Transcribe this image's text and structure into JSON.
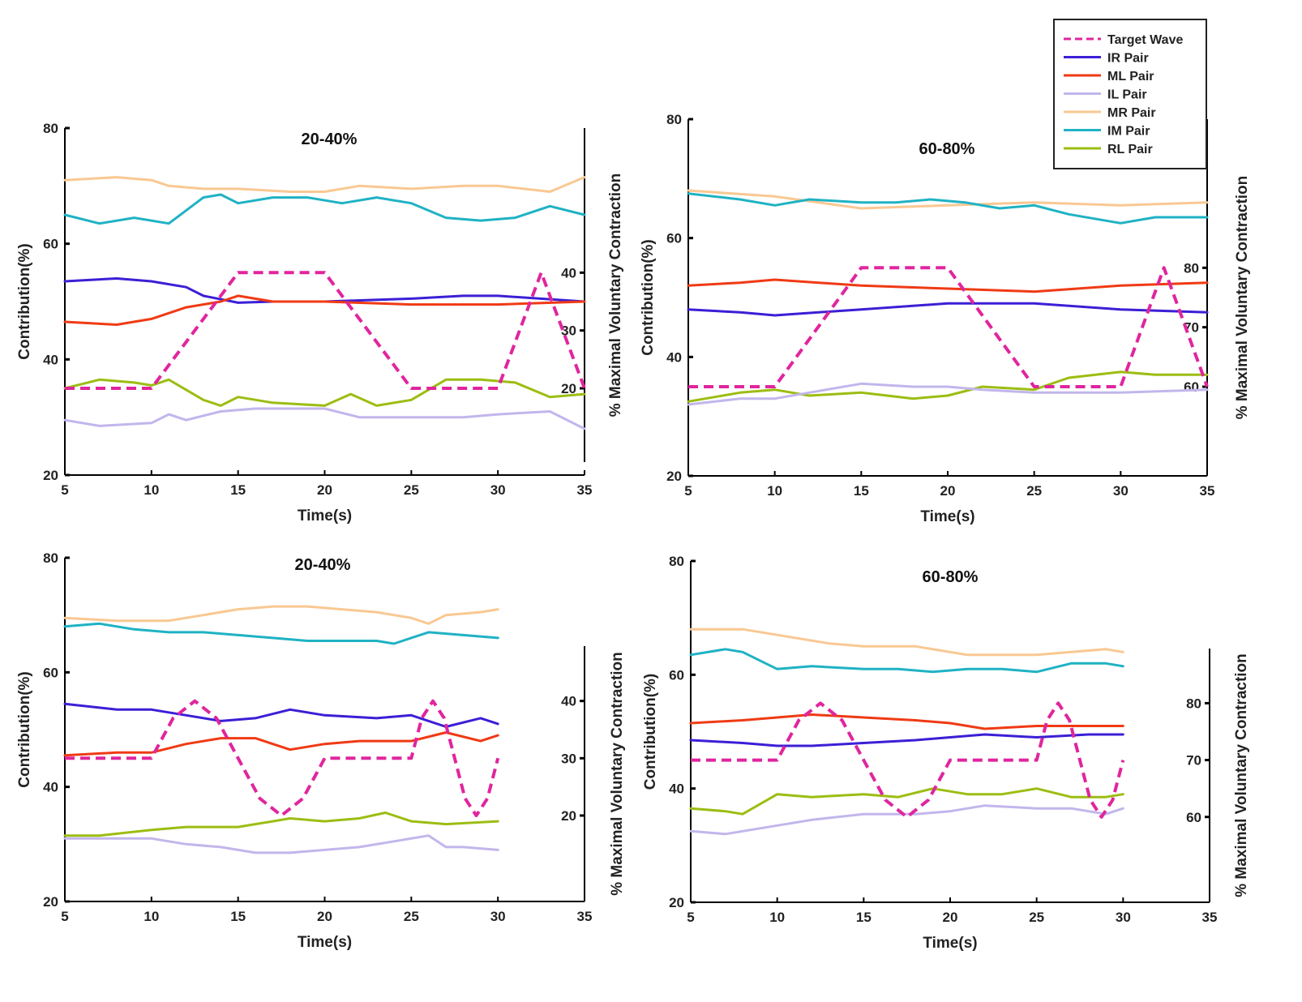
{
  "legend": {
    "entries": [
      {
        "label": "Target Wave",
        "color": "#e0259e",
        "dashed": true
      },
      {
        "label": "IR Pair",
        "color": "#3b1fd6",
        "dashed": false
      },
      {
        "label": "ML Pair",
        "color": "#f03a14",
        "dashed": false
      },
      {
        "label": "IL Pair",
        "color": "#c2b6ec",
        "dashed": false
      },
      {
        "label": "MR Pair",
        "color": "#f9c892",
        "dashed": false
      },
      {
        "label": "IM Pair",
        "color": "#1fb2c4",
        "dashed": false
      },
      {
        "label": "RL Pair",
        "color": "#9cbd12",
        "dashed": false
      }
    ]
  },
  "chart_data": [
    {
      "type": "line",
      "title": "20-40%",
      "xlabel": "Time(s)",
      "ylabel": "Contribution(%)",
      "y2label": "% Maximal Voluntary Contraction",
      "xlim": [
        5,
        35
      ],
      "xticks": [
        5,
        10,
        15,
        20,
        25,
        30,
        35
      ],
      "ylim": [
        20,
        80
      ],
      "yticks": [
        20,
        40,
        60,
        80
      ],
      "y2ticks": [
        20,
        30,
        40
      ],
      "y2_at_left": [
        35,
        45,
        55
      ],
      "target_wave": {
        "name": "Target Wave",
        "x": [
          5,
          10,
          15,
          20,
          25,
          30,
          32.5,
          35
        ],
        "y": [
          20,
          20,
          40,
          40,
          20,
          20,
          40,
          20
        ]
      },
      "series": [
        {
          "name": "MR Pair",
          "x": [
            5,
            8,
            10,
            11,
            13,
            15,
            18,
            20,
            22,
            25,
            28,
            30,
            33,
            35
          ],
          "y": [
            71,
            71.5,
            71,
            70,
            69.5,
            69.5,
            69,
            69,
            70,
            69.5,
            70,
            70,
            69,
            71.5
          ]
        },
        {
          "name": "IM Pair",
          "x": [
            5,
            7,
            9,
            11,
            13,
            14,
            15,
            17,
            19,
            21,
            23,
            25,
            27,
            29,
            31,
            33,
            35
          ],
          "y": [
            65,
            63.5,
            64.5,
            63.5,
            68,
            68.5,
            67,
            68,
            68,
            67,
            68,
            67,
            64.5,
            64,
            64.5,
            66.5,
            65
          ]
        },
        {
          "name": "IR Pair",
          "x": [
            5,
            8,
            10,
            12,
            13,
            15,
            17,
            20,
            25,
            28,
            30,
            35
          ],
          "y": [
            53.5,
            54,
            53.5,
            52.5,
            51,
            49.8,
            50,
            50,
            50.5,
            51,
            51,
            50
          ]
        },
        {
          "name": "ML Pair",
          "x": [
            5,
            8,
            10,
            12,
            14,
            15,
            17,
            20,
            25,
            28,
            30,
            35
          ],
          "y": [
            46.5,
            46,
            47,
            49,
            50,
            51,
            50,
            50,
            49.5,
            49.5,
            49.5,
            50
          ]
        },
        {
          "name": "RL Pair",
          "x": [
            5,
            7,
            9,
            10,
            11,
            13,
            14,
            15,
            17,
            20,
            21.5,
            23,
            25,
            27,
            29,
            31,
            33,
            35
          ],
          "y": [
            35,
            36.5,
            36,
            35.5,
            36.5,
            33,
            32,
            33.5,
            32.5,
            32,
            34,
            32,
            33,
            36.5,
            36.5,
            36,
            33.5,
            34
          ]
        },
        {
          "name": "IL Pair",
          "x": [
            5,
            7,
            10,
            11,
            12,
            14,
            16,
            20,
            22,
            25,
            28,
            30,
            33,
            35
          ],
          "y": [
            29.5,
            28.5,
            29,
            30.5,
            29.5,
            31,
            31.5,
            31.5,
            30,
            30,
            30,
            30.5,
            31,
            28
          ]
        }
      ]
    },
    {
      "type": "line",
      "title": "60-80%",
      "xlabel": "Time(s)",
      "ylabel": "Contribution(%)",
      "y2label": "% Maximal Voluntary Contraction",
      "xlim": [
        5,
        35
      ],
      "xticks": [
        5,
        10,
        15,
        20,
        25,
        30,
        35
      ],
      "ylim": [
        20,
        80
      ],
      "yticks": [
        20,
        40,
        60,
        80
      ],
      "y2ticks": [
        60,
        70,
        80
      ],
      "y2_at_left": [
        35,
        45,
        55
      ],
      "target_wave": {
        "name": "Target Wave",
        "x": [
          5,
          10,
          15,
          20,
          25,
          30,
          32.5,
          35
        ],
        "y": [
          60,
          60,
          80,
          80,
          60,
          60,
          80,
          60
        ]
      },
      "series": [
        {
          "name": "MR Pair",
          "x": [
            5,
            10,
            15,
            20,
            25,
            30,
            35
          ],
          "y": [
            68,
            67,
            65,
            65.5,
            66,
            65.5,
            66
          ]
        },
        {
          "name": "IM Pair",
          "x": [
            5,
            8,
            10,
            12,
            15,
            17,
            19,
            21,
            23,
            25,
            27,
            30,
            32,
            35
          ],
          "y": [
            67.5,
            66.5,
            65.5,
            66.5,
            66,
            66,
            66.5,
            66,
            65,
            65.5,
            64,
            62.5,
            63.5,
            63.5
          ]
        },
        {
          "name": "ML Pair",
          "x": [
            5,
            8,
            10,
            15,
            20,
            25,
            30,
            35
          ],
          "y": [
            52,
            52.5,
            53,
            52,
            51.5,
            51,
            52,
            52.5
          ]
        },
        {
          "name": "IR Pair",
          "x": [
            5,
            8,
            10,
            15,
            20,
            25,
            30,
            35
          ],
          "y": [
            48,
            47.5,
            47,
            48,
            49,
            49,
            48,
            47.5
          ]
        },
        {
          "name": "RL Pair",
          "x": [
            5,
            8,
            10,
            12,
            15,
            18,
            20,
            22,
            25,
            27,
            30,
            32,
            35
          ],
          "y": [
            32.5,
            34,
            34.5,
            33.5,
            34,
            33,
            33.5,
            35,
            34.5,
            36.5,
            37.5,
            37,
            37
          ]
        },
        {
          "name": "IL Pair",
          "x": [
            5,
            8,
            10,
            12,
            15,
            18,
            20,
            22,
            25,
            30,
            35
          ],
          "y": [
            32,
            33,
            33,
            34,
            35.5,
            35,
            35,
            34.5,
            34,
            34,
            34.5
          ]
        }
      ]
    },
    {
      "type": "line",
      "title": "20-40%",
      "xlabel": "Time(s)",
      "ylabel": "Contribution(%)",
      "y2label": "% Maximal Voluntary Contraction",
      "xlim": [
        5,
        35
      ],
      "xticks": [
        5,
        10,
        15,
        20,
        25,
        30,
        35
      ],
      "ylim": [
        20,
        80
      ],
      "yticks": [
        20,
        40,
        60,
        80
      ],
      "y2ticks": [
        20,
        30,
        40
      ],
      "y2_at_left": [
        35,
        45,
        55
      ],
      "target_wave": {
        "name": "Target Wave",
        "x": [
          5,
          10,
          11.25,
          12.5,
          13.75,
          15,
          16.25,
          17.5,
          18.75,
          20,
          25,
          25.6,
          26.25,
          26.9,
          27.5,
          28.1,
          28.75,
          29.4,
          30
        ],
        "y": [
          30,
          30,
          37,
          40,
          37,
          30,
          23,
          20,
          23,
          30,
          30,
          37,
          40,
          37,
          30,
          23,
          20,
          23,
          30
        ]
      },
      "series": [
        {
          "name": "MR Pair",
          "x": [
            5,
            8,
            11,
            13,
            15,
            17,
            19,
            21,
            23,
            25,
            26,
            27,
            29,
            30
          ],
          "y": [
            69.5,
            69,
            69,
            70,
            71,
            71.5,
            71.5,
            71,
            70.5,
            69.5,
            68.5,
            70,
            70.5,
            71
          ]
        },
        {
          "name": "IM Pair",
          "x": [
            5,
            7,
            9,
            11,
            13,
            15,
            17,
            19,
            21,
            23,
            24,
            25,
            26,
            28,
            30
          ],
          "y": [
            68,
            68.5,
            67.5,
            67,
            67,
            66.5,
            66,
            65.5,
            65.5,
            65.5,
            65,
            66,
            67,
            66.5,
            66
          ]
        },
        {
          "name": "IR Pair",
          "x": [
            5,
            8,
            10,
            12,
            14,
            16,
            18,
            20,
            23,
            25,
            27,
            29,
            30
          ],
          "y": [
            54.5,
            53.5,
            53.5,
            52.5,
            51.5,
            52,
            53.5,
            52.5,
            52,
            52.5,
            50.5,
            52,
            51
          ]
        },
        {
          "name": "ML Pair",
          "x": [
            5,
            8,
            10,
            12,
            14,
            16,
            17,
            18,
            20,
            22,
            25,
            27,
            29,
            30
          ],
          "y": [
            45.5,
            46,
            46,
            47.5,
            48.5,
            48.5,
            47.5,
            46.5,
            47.5,
            48,
            48,
            49.5,
            48,
            49
          ]
        },
        {
          "name": "RL Pair",
          "x": [
            5,
            7,
            10,
            12,
            15,
            17,
            18,
            20,
            22,
            23.5,
            25,
            27,
            30
          ],
          "y": [
            31.5,
            31.5,
            32.5,
            33,
            33,
            34,
            34.5,
            34,
            34.5,
            35.5,
            34,
            33.5,
            34
          ]
        },
        {
          "name": "IL Pair",
          "x": [
            5,
            8,
            10,
            12,
            14,
            16,
            18,
            20,
            22,
            24,
            26,
            27,
            28,
            30
          ],
          "y": [
            31,
            31,
            31,
            30,
            29.5,
            28.5,
            28.5,
            29,
            29.5,
            30.5,
            31.5,
            29.5,
            29.5,
            29
          ]
        }
      ]
    },
    {
      "type": "line",
      "title": "60-80%",
      "xlabel": "Time(s)",
      "ylabel": "Contribution(%)",
      "y2label": "% Maximal Voluntary Contraction",
      "xlim": [
        5,
        35
      ],
      "xticks": [
        5,
        10,
        15,
        20,
        25,
        30,
        35
      ],
      "ylim": [
        20,
        80
      ],
      "yticks": [
        20,
        40,
        60,
        80
      ],
      "y2ticks": [
        60,
        70,
        80
      ],
      "y2_at_left": [
        35,
        45,
        55
      ],
      "target_wave": {
        "name": "Target Wave",
        "x": [
          5,
          10,
          11.25,
          12.5,
          13.75,
          15,
          16.25,
          17.5,
          18.75,
          20,
          25,
          25.6,
          26.25,
          26.9,
          27.5,
          28.1,
          28.75,
          29.4,
          30
        ],
        "y": [
          70,
          70,
          77,
          80,
          77,
          70,
          63,
          60,
          63,
          70,
          70,
          77,
          80,
          77,
          70,
          63,
          60,
          63,
          70
        ]
      },
      "series": [
        {
          "name": "MR Pair",
          "x": [
            5,
            8,
            10,
            13,
            15,
            18,
            20,
            21,
            23,
            25,
            27,
            29,
            30
          ],
          "y": [
            68,
            68,
            67,
            65.5,
            65,
            65,
            64,
            63.5,
            63.5,
            63.5,
            64,
            64.5,
            64
          ]
        },
        {
          "name": "IM Pair",
          "x": [
            5,
            7,
            8,
            9,
            10,
            12,
            15,
            17,
            19,
            21,
            23,
            25,
            27,
            29,
            30
          ],
          "y": [
            63.5,
            64.5,
            64,
            62.5,
            61,
            61.5,
            61,
            61,
            60.5,
            61,
            61,
            60.5,
            62,
            62,
            61.5
          ]
        },
        {
          "name": "ML Pair",
          "x": [
            5,
            8,
            10,
            12,
            15,
            18,
            20,
            22,
            25,
            27,
            30
          ],
          "y": [
            51.5,
            52,
            52.5,
            53,
            52.5,
            52,
            51.5,
            50.5,
            51,
            51,
            51
          ]
        },
        {
          "name": "IR Pair",
          "x": [
            5,
            8,
            10,
            12,
            15,
            18,
            20,
            22,
            25,
            28,
            30
          ],
          "y": [
            48.5,
            48,
            47.5,
            47.5,
            48,
            48.5,
            49,
            49.5,
            49,
            49.5,
            49.5
          ]
        },
        {
          "name": "RL Pair",
          "x": [
            5,
            7,
            8,
            10,
            12,
            15,
            17,
            19,
            21,
            23,
            25,
            27,
            29,
            30
          ],
          "y": [
            36.5,
            36,
            35.5,
            39,
            38.5,
            39,
            38.5,
            40,
            39,
            39,
            40,
            38.5,
            38.5,
            39
          ]
        },
        {
          "name": "IL Pair",
          "x": [
            5,
            7,
            10,
            12,
            15,
            18,
            20,
            22,
            25,
            27,
            29,
            30
          ],
          "y": [
            32.5,
            32,
            33.5,
            34.5,
            35.5,
            35.5,
            36,
            37,
            36.5,
            36.5,
            35.5,
            36.5
          ]
        }
      ]
    }
  ]
}
